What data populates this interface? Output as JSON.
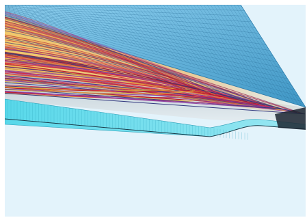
{
  "viewport": {
    "background": "#e3f3fb"
  },
  "scene": {
    "deck_color": "#7ec6e6",
    "deck_edge_color": "#2f7fae",
    "girder_color": "#6fd9ea",
    "underside_color": "#c9d5dc",
    "cable_colors": [
      "#d7263d",
      "#b5162b",
      "#e0a83a",
      "#8e3a9d",
      "#2a2f7a"
    ],
    "shadow_color": "#1b2430"
  }
}
